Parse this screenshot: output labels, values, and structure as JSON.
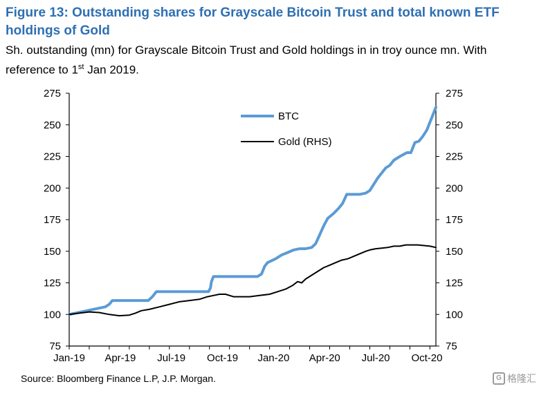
{
  "title": "Figure 13: Outstanding shares for Grayscale Bitcoin Trust and total known ETF holdings of Gold",
  "subtitle_main": "Sh. outstanding (mn) for Grayscale Bitcoin Trust and Gold holdings in in troy ounce mn. With reference to 1",
  "subtitle_sup": "st",
  "subtitle_tail": " Jan 2019.",
  "source": "Source: Bloomberg Finance L.P, J.P. Morgan.",
  "watermark": "格隆汇",
  "chart_data": {
    "type": "line",
    "x_tick_labels": [
      "Jan-19",
      "Apr-19",
      "Jul-19",
      "Oct-19",
      "Jan-20",
      "Apr-20",
      "Jul-20",
      "Oct-20"
    ],
    "y_ticks": [
      "75",
      "100",
      "125",
      "150",
      "175",
      "200",
      "225",
      "250",
      "275"
    ],
    "ylim": [
      75,
      275
    ],
    "y2lim": [
      75,
      275
    ],
    "legend_position": "top-center",
    "series": [
      {
        "name": "BTC",
        "axis": "left",
        "color": "#5b9bd5",
        "points": [
          [
            0,
            100
          ],
          [
            0.3,
            101
          ],
          [
            0.6,
            102
          ],
          [
            0.9,
            103
          ],
          [
            1.2,
            104
          ],
          [
            1.5,
            105
          ],
          [
            1.8,
            106
          ],
          [
            2.0,
            108
          ],
          [
            2.15,
            111
          ],
          [
            2.8,
            111
          ],
          [
            3.3,
            111
          ],
          [
            3.95,
            111
          ],
          [
            4.15,
            114
          ],
          [
            4.35,
            118
          ],
          [
            5.0,
            118
          ],
          [
            5.8,
            118
          ],
          [
            6.4,
            118
          ],
          [
            6.95,
            118
          ],
          [
            7.05,
            121
          ],
          [
            7.1,
            126
          ],
          [
            7.2,
            130
          ],
          [
            8.0,
            130
          ],
          [
            8.8,
            130
          ],
          [
            9.4,
            130
          ],
          [
            9.6,
            132
          ],
          [
            9.75,
            138
          ],
          [
            9.9,
            141
          ],
          [
            10.3,
            144
          ],
          [
            10.6,
            147
          ],
          [
            10.9,
            149
          ],
          [
            11.2,
            151
          ],
          [
            11.5,
            152
          ],
          [
            11.8,
            152
          ],
          [
            12.1,
            153
          ],
          [
            12.3,
            156
          ],
          [
            12.5,
            163
          ],
          [
            12.7,
            170
          ],
          [
            12.9,
            176
          ],
          [
            13.2,
            180
          ],
          [
            13.45,
            184
          ],
          [
            13.65,
            188
          ],
          [
            13.85,
            195
          ],
          [
            14.05,
            195
          ],
          [
            14.5,
            195
          ],
          [
            14.8,
            196
          ],
          [
            15.0,
            198
          ],
          [
            15.2,
            203
          ],
          [
            15.4,
            208
          ],
          [
            15.6,
            212
          ],
          [
            15.8,
            216
          ],
          [
            16.0,
            218
          ],
          [
            16.2,
            222
          ],
          [
            16.5,
            225
          ],
          [
            16.85,
            228
          ],
          [
            17.05,
            228
          ],
          [
            17.25,
            236
          ],
          [
            17.45,
            237
          ],
          [
            17.65,
            241
          ],
          [
            17.85,
            246
          ],
          [
            18.0,
            252
          ],
          [
            18.15,
            258
          ],
          [
            18.3,
            264
          ]
        ]
      },
      {
        "name": "Gold (RHS)",
        "axis": "right",
        "color": "#000000",
        "points": [
          [
            0,
            100
          ],
          [
            0.5,
            101
          ],
          [
            1.0,
            102
          ],
          [
            1.5,
            101.5
          ],
          [
            2.0,
            100
          ],
          [
            2.5,
            99
          ],
          [
            3.0,
            99.5
          ],
          [
            3.3,
            101
          ],
          [
            3.6,
            103
          ],
          [
            4.0,
            104
          ],
          [
            4.5,
            106
          ],
          [
            5.0,
            108
          ],
          [
            5.5,
            110
          ],
          [
            6.0,
            111
          ],
          [
            6.5,
            112
          ],
          [
            6.9,
            114
          ],
          [
            7.2,
            115
          ],
          [
            7.5,
            116
          ],
          [
            7.8,
            116
          ],
          [
            8.2,
            114
          ],
          [
            8.6,
            114
          ],
          [
            9.0,
            114
          ],
          [
            9.5,
            115
          ],
          [
            10.0,
            116
          ],
          [
            10.4,
            118
          ],
          [
            10.8,
            120
          ],
          [
            11.15,
            123
          ],
          [
            11.4,
            126
          ],
          [
            11.6,
            125
          ],
          [
            11.8,
            128
          ],
          [
            12.1,
            131
          ],
          [
            12.4,
            134
          ],
          [
            12.7,
            137
          ],
          [
            13.0,
            139
          ],
          [
            13.3,
            141
          ],
          [
            13.6,
            143
          ],
          [
            13.9,
            144
          ],
          [
            14.2,
            146
          ],
          [
            14.5,
            148
          ],
          [
            14.8,
            150
          ],
          [
            15.0,
            151
          ],
          [
            15.3,
            152
          ],
          [
            15.6,
            152.5
          ],
          [
            15.9,
            153
          ],
          [
            16.2,
            154
          ],
          [
            16.5,
            154
          ],
          [
            16.8,
            155
          ],
          [
            17.1,
            155
          ],
          [
            17.4,
            155
          ],
          [
            17.7,
            154.5
          ],
          [
            18.0,
            154
          ],
          [
            18.3,
            153
          ]
        ]
      }
    ]
  }
}
